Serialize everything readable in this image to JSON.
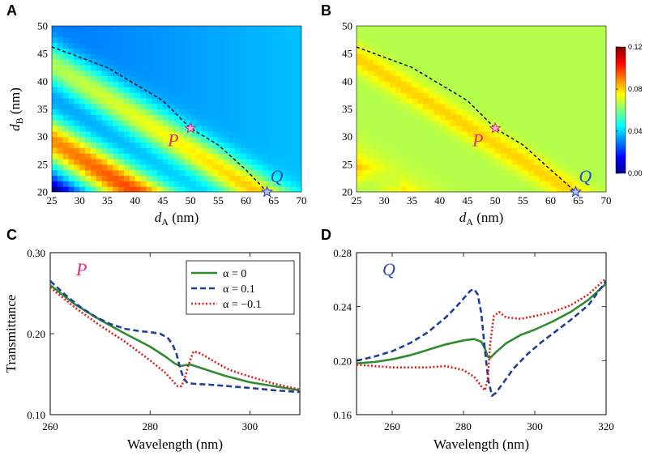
{
  "colors": {
    "point_P": "#d6317a",
    "point_Q": "#2a45c8",
    "alpha0": "#2e8b2e",
    "alpha_pos": "#1f3f9a",
    "alpha_neg": "#e01b1b"
  },
  "chart_data": [
    {
      "panel": "A",
      "type": "heatmap",
      "xlabel_main": "d",
      "xlabel_sub": "A",
      "xlabel_unit": " (nm)",
      "ylabel_main": "d",
      "ylabel_sub": "B",
      "ylabel_unit": " (nm)",
      "xlim": [
        25,
        70
      ],
      "ylim": [
        20,
        50
      ],
      "xticks": [
        "25",
        "30",
        "35",
        "40",
        "45",
        "50",
        "55",
        "60",
        "65",
        "70"
      ],
      "yticks": [
        "20",
        "25",
        "30",
        "35",
        "40",
        "45",
        "50"
      ],
      "points": [
        {
          "label": "P",
          "x": 50,
          "y": 31.5
        },
        {
          "label": "Q",
          "x": 63.8,
          "y": 20
        }
      ],
      "dashed_curve": {
        "x": [
          25,
          35,
          45,
          50,
          55,
          60,
          63.8
        ],
        "y": [
          46.2,
          42.5,
          36.5,
          31.5,
          28.5,
          24,
          20
        ]
      }
    },
    {
      "panel": "B",
      "type": "heatmap",
      "xlabel_main": "d",
      "xlabel_sub": "A",
      "xlabel_unit": " (nm)",
      "xlim": [
        25,
        70
      ],
      "ylim": [
        20,
        50
      ],
      "xticks": [
        "25",
        "30",
        "35",
        "40",
        "45",
        "50",
        "55",
        "60",
        "65",
        "70"
      ],
      "yticks": [
        "20",
        "25",
        "30",
        "35",
        "40",
        "45",
        "50"
      ],
      "points": [
        {
          "label": "P",
          "x": 50,
          "y": 31.5
        },
        {
          "label": "Q",
          "x": 64.5,
          "y": 20
        }
      ],
      "dashed_curve": {
        "x": [
          25,
          35,
          45,
          50,
          55,
          60,
          64.5
        ],
        "y": [
          46.2,
          42.5,
          36.5,
          31.5,
          28.5,
          24,
          20
        ]
      },
      "colorbar": {
        "min": 0.0,
        "max": 0.12,
        "ticks": [
          "0.00",
          "0.04",
          "0.08",
          "0.12"
        ]
      }
    },
    {
      "panel": "C",
      "type": "line",
      "annotation": "P",
      "xlabel": "Wavelength (nm)",
      "ylabel": "Transmittance",
      "xlim": [
        260,
        310
      ],
      "ylim": [
        0.1,
        0.3
      ],
      "xticks": [
        "260",
        "280",
        "300"
      ],
      "yticks": [
        "0.10",
        "0.20",
        "0.30"
      ],
      "legend": [
        "α = 0",
        "α = 0.1",
        "α = −0.1"
      ],
      "series": [
        {
          "name": "α = 0",
          "x": [
            260,
            265,
            270,
            275,
            280,
            283,
            285,
            286,
            287,
            288,
            290,
            295,
            300,
            305,
            310
          ],
          "y": [
            0.26,
            0.236,
            0.217,
            0.2,
            0.184,
            0.172,
            0.163,
            0.16,
            0.161,
            0.162,
            0.158,
            0.148,
            0.14,
            0.135,
            0.13
          ]
        },
        {
          "name": "α = 0.1",
          "x": [
            260,
            263,
            266,
            269,
            272,
            275,
            278,
            280,
            282,
            283.5,
            284.5,
            285.3,
            286,
            286.7,
            287.5,
            289,
            292,
            296,
            300,
            305,
            310
          ],
          "y": [
            0.265,
            0.248,
            0.233,
            0.221,
            0.212,
            0.206,
            0.203,
            0.202,
            0.2,
            0.195,
            0.187,
            0.175,
            0.158,
            0.145,
            0.139,
            0.138,
            0.137,
            0.135,
            0.133,
            0.13,
            0.128
          ]
        },
        {
          "name": "α = −0.1",
          "x": [
            260,
            265,
            270,
            275,
            280,
            283,
            284.5,
            285.5,
            286.3,
            287,
            287.8,
            288.7,
            290,
            293,
            296,
            300,
            305,
            310
          ],
          "y": [
            0.257,
            0.232,
            0.21,
            0.19,
            0.167,
            0.152,
            0.142,
            0.135,
            0.135,
            0.146,
            0.163,
            0.178,
            0.176,
            0.165,
            0.155,
            0.147,
            0.138,
            0.131
          ]
        }
      ]
    },
    {
      "panel": "D",
      "type": "line",
      "annotation": "Q",
      "xlabel": "Wavelength (nm)",
      "xlim": [
        250,
        320
      ],
      "ylim": [
        0.16,
        0.28
      ],
      "xticks": [
        "260",
        "280",
        "300",
        "320"
      ],
      "yticks": [
        "0.16",
        "0.20",
        "0.24",
        "0.28"
      ],
      "series": [
        {
          "name": "α = 0",
          "x": [
            250,
            255,
            260,
            265,
            270,
            275,
            280,
            283,
            285,
            286,
            286.8,
            287.5,
            289,
            292,
            296,
            300,
            305,
            310,
            315,
            320
          ],
          "y": [
            0.198,
            0.199,
            0.201,
            0.204,
            0.208,
            0.212,
            0.215,
            0.216,
            0.214,
            0.209,
            0.203,
            0.202,
            0.206,
            0.213,
            0.219,
            0.223,
            0.229,
            0.236,
            0.245,
            0.257
          ]
        },
        {
          "name": "α = 0.1",
          "x": [
            250,
            255,
            260,
            265,
            270,
            275,
            278,
            280,
            282,
            283,
            284,
            285,
            286,
            287,
            288,
            289,
            291,
            294,
            298,
            302,
            306,
            310,
            315,
            320
          ],
          "y": [
            0.2,
            0.203,
            0.207,
            0.213,
            0.221,
            0.232,
            0.24,
            0.246,
            0.252,
            0.253,
            0.249,
            0.235,
            0.208,
            0.185,
            0.174,
            0.176,
            0.183,
            0.194,
            0.205,
            0.214,
            0.222,
            0.23,
            0.241,
            0.259
          ]
        },
        {
          "name": "α = −0.1",
          "x": [
            250,
            255,
            260,
            265,
            270,
            275,
            280,
            283,
            285,
            286,
            286.8,
            287.5,
            288.5,
            290,
            292,
            296,
            300,
            305,
            310,
            315,
            320
          ],
          "y": [
            0.197,
            0.196,
            0.195,
            0.195,
            0.195,
            0.196,
            0.193,
            0.188,
            0.181,
            0.178,
            0.186,
            0.213,
            0.233,
            0.236,
            0.232,
            0.231,
            0.233,
            0.236,
            0.241,
            0.249,
            0.261
          ]
        }
      ]
    }
  ]
}
